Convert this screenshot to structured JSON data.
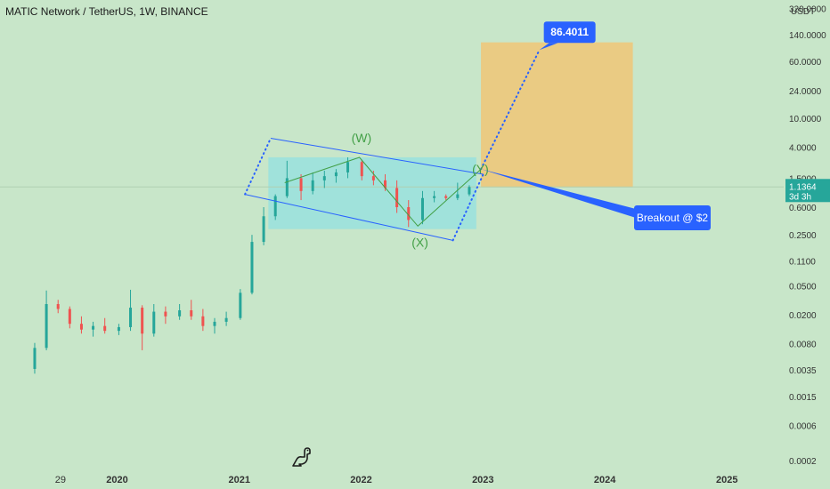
{
  "header": {
    "title": "MATIC Network / TetherUS, 1W, BINANCE"
  },
  "price_axis": {
    "unit": "USDT",
    "ticks": [
      "320.0000",
      "140.0000",
      "60.0000",
      "24.0000",
      "10.0000",
      "4.0000",
      "1.5000",
      "0.6000",
      "0.2500",
      "0.1100",
      "0.0500",
      "0.0200",
      "0.0080",
      "0.0035",
      "0.0015",
      "0.0006",
      "0.0002"
    ],
    "current_price": "1.1364",
    "countdown": "3d 3h"
  },
  "time_axis": {
    "ticks": [
      "29",
      "2020",
      "2021",
      "2022",
      "2023",
      "2024",
      "2025"
    ]
  },
  "annotations": {
    "target_label": "86.4011",
    "breakout_label": "Breakout @ $2",
    "wave_w": "(W)",
    "wave_x": "(X)",
    "wave_y": "(Y)"
  },
  "colors": {
    "background": "#c8e6c9",
    "up_candle": "#26a69a",
    "down_candle": "#ef5350",
    "channel": "#2962ff",
    "wave": "#43a047",
    "range_box": "#80deea",
    "target_box": "#f5c26b",
    "callout": "#2962ff",
    "price_badge": "#26a69a"
  },
  "chart_data": {
    "type": "candlestick",
    "series": [
      {
        "name": "MATIC/USDT",
        "ohlc": [
          [
            "2019-04-29",
            0.0036,
            0.0082,
            0.0031,
            0.007
          ],
          [
            "2019-06-03",
            0.007,
            0.043,
            0.0065,
            0.028
          ],
          [
            "2019-07-08",
            0.028,
            0.032,
            0.021,
            0.024
          ],
          [
            "2019-08-12",
            0.024,
            0.026,
            0.013,
            0.015
          ],
          [
            "2019-09-16",
            0.015,
            0.019,
            0.011,
            0.0125
          ],
          [
            "2019-10-21",
            0.0125,
            0.016,
            0.01,
            0.014
          ],
          [
            "2019-11-25",
            0.014,
            0.018,
            0.011,
            0.012
          ],
          [
            "2020-01-06",
            0.012,
            0.015,
            0.0105,
            0.0135
          ],
          [
            "2020-02-10",
            0.0135,
            0.044,
            0.012,
            0.025
          ],
          [
            "2020-03-16",
            0.025,
            0.027,
            0.0065,
            0.011
          ],
          [
            "2020-04-20",
            0.011,
            0.028,
            0.01,
            0.022
          ],
          [
            "2020-05-25",
            0.022,
            0.026,
            0.015,
            0.019
          ],
          [
            "2020-07-06",
            0.019,
            0.028,
            0.017,
            0.023
          ],
          [
            "2020-08-10",
            0.023,
            0.032,
            0.017,
            0.019
          ],
          [
            "2020-09-14",
            0.019,
            0.024,
            0.012,
            0.014
          ],
          [
            "2020-10-19",
            0.014,
            0.018,
            0.011,
            0.016
          ],
          [
            "2020-11-23",
            0.016,
            0.022,
            0.014,
            0.018
          ],
          [
            "2021-01-04",
            0.018,
            0.045,
            0.017,
            0.04
          ],
          [
            "2021-02-08",
            0.04,
            0.25,
            0.038,
            0.2
          ],
          [
            "2021-03-15",
            0.2,
            0.6,
            0.18,
            0.45
          ],
          [
            "2021-04-19",
            0.45,
            0.9,
            0.4,
            0.85
          ],
          [
            "2021-05-24",
            0.85,
            2.6,
            0.8,
            1.5
          ],
          [
            "2021-07-05",
            1.5,
            1.7,
            0.75,
            1.0
          ],
          [
            "2021-08-09",
            1.0,
            1.8,
            0.9,
            1.4
          ],
          [
            "2021-09-13",
            1.4,
            1.9,
            1.1,
            1.6
          ],
          [
            "2021-10-18",
            1.6,
            2.0,
            1.3,
            1.8
          ],
          [
            "2021-11-22",
            1.8,
            2.9,
            1.5,
            2.5
          ],
          [
            "2022-01-03",
            2.5,
            2.7,
            1.4,
            1.6
          ],
          [
            "2022-02-07",
            1.6,
            1.9,
            1.2,
            1.4
          ],
          [
            "2022-03-14",
            1.4,
            1.7,
            1.0,
            1.1
          ],
          [
            "2022-04-18",
            1.1,
            1.4,
            0.5,
            0.6
          ],
          [
            "2022-05-23",
            0.6,
            0.75,
            0.32,
            0.4
          ],
          [
            "2022-07-04",
            0.4,
            1.0,
            0.35,
            0.8
          ],
          [
            "2022-08-08",
            0.8,
            1.0,
            0.7,
            0.85
          ],
          [
            "2022-09-12",
            0.85,
            0.9,
            0.75,
            0.8
          ],
          [
            "2022-10-17",
            0.8,
            1.3,
            0.75,
            0.9
          ],
          [
            "2022-11-21",
            0.9,
            1.2,
            0.85,
            1.1364
          ]
        ]
      }
    ],
    "y_scale": "log",
    "ylim": [
      0.00015,
      420
    ],
    "xlim": [
      "2019-01-15",
      "2025-06-20"
    ],
    "grid": false,
    "current_price": 1.1364,
    "wave_points": [
      {
        "date": "2021-05-17",
        "price": 1.3
      },
      {
        "date": "2021-12-27",
        "price": 2.9
      },
      {
        "date": "2022-06-20",
        "price": 0.33
      },
      {
        "date": "2022-12-26",
        "price": 2.0
      }
    ],
    "channel": {
      "upper": [
        {
          "date": "2021-04-05",
          "price": 5.3
        },
        {
          "date": "2023-01-02",
          "price": 1.7
        }
      ],
      "lower": [
        {
          "date": "2021-01-18",
          "price": 0.9
        },
        {
          "date": "2022-10-03",
          "price": 0.21
        }
      ]
    },
    "range_box": {
      "from": "2021-03-29",
      "to": "2022-12-12",
      "high": 2.9,
      "low": 0.3
    },
    "target_box": {
      "from": "2022-12-26",
      "to": "2024-03-25",
      "high": 110,
      "low": 1.12
    },
    "projection": [
      {
        "date": "2022-12-26",
        "price": 2.0
      },
      {
        "date": "2023-06-19",
        "price": 86.4011
      }
    ],
    "target_price": 86.4011,
    "breakout_price": 2
  }
}
